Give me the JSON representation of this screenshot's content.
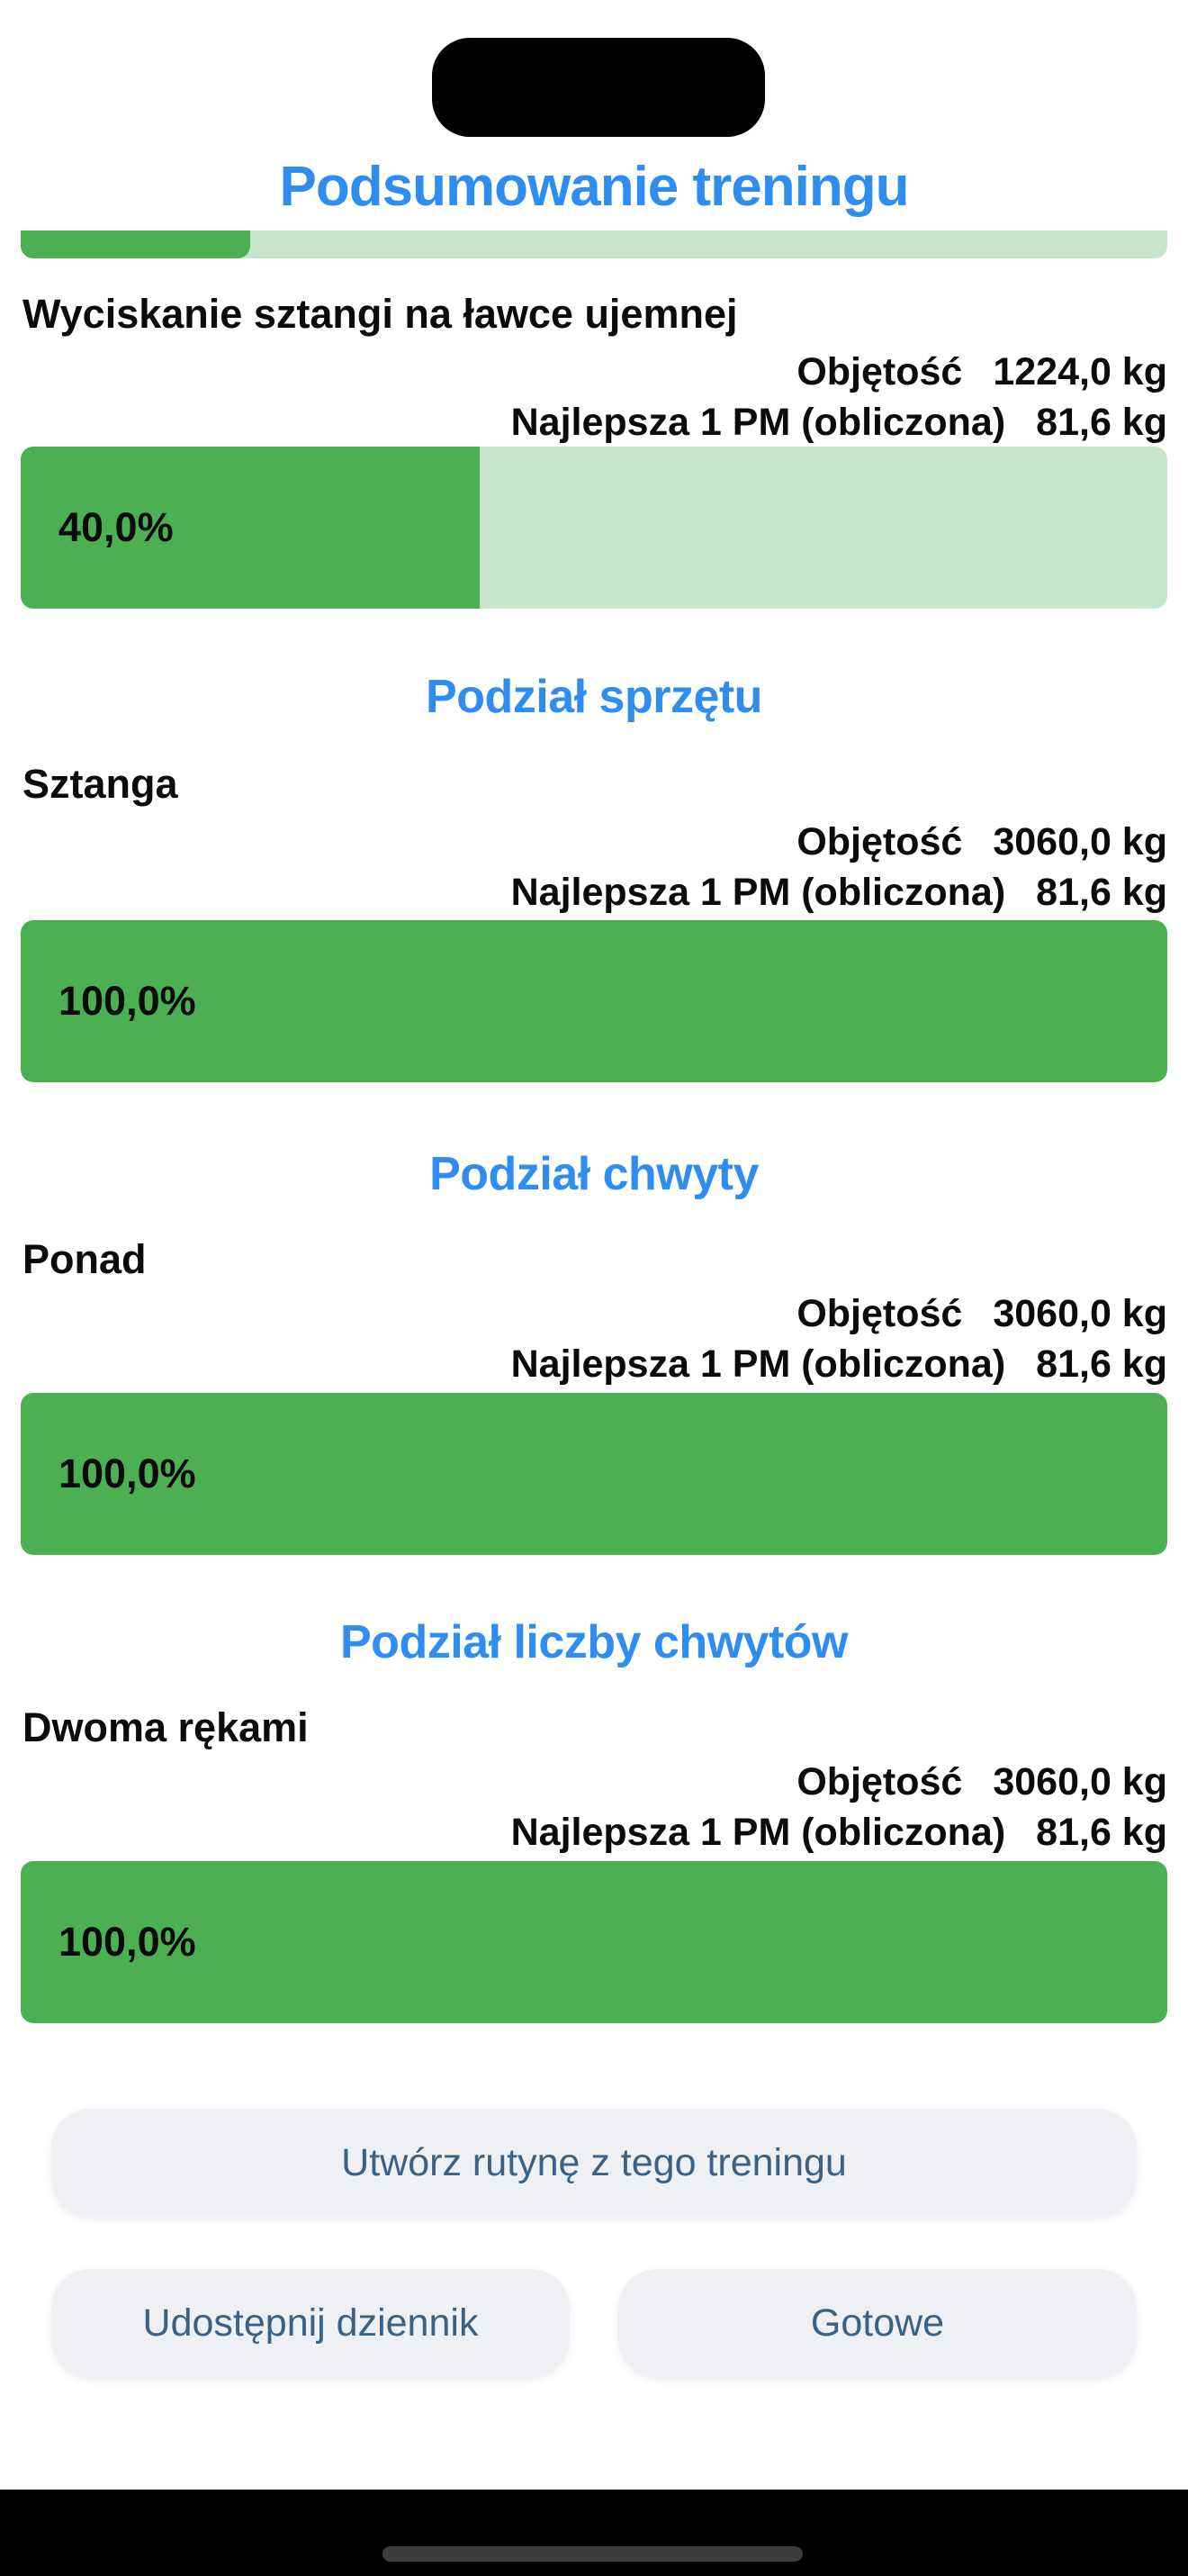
{
  "page": {
    "title": "Podsumowanie treningu"
  },
  "stats_labels": {
    "volume": "Objętość",
    "best_1rm": "Najlepsza 1 PM (obliczona)"
  },
  "top_bar": {
    "percent": 20
  },
  "sections": [
    {
      "heading": "",
      "item": "Wyciskanie sztangi na ławce ujemnej",
      "volume_value": "1224,0 kg",
      "best_1rm_value": "81,6 kg",
      "percent": 40,
      "percent_label": "40,0%"
    },
    {
      "heading": "Podział sprzętu",
      "item": "Sztanga",
      "volume_value": "3060,0 kg",
      "best_1rm_value": "81,6 kg",
      "percent": 100,
      "percent_label": "100,0%"
    },
    {
      "heading": "Podział chwyty",
      "item": "Ponad",
      "volume_value": "3060,0 kg",
      "best_1rm_value": "81,6 kg",
      "percent": 100,
      "percent_label": "100,0%"
    },
    {
      "heading": "Podział liczby chwytów",
      "item": "Dwoma rękami",
      "volume_value": "3060,0 kg",
      "best_1rm_value": "81,6 kg",
      "percent": 100,
      "percent_label": "100,0%"
    }
  ],
  "buttons": {
    "create_routine": "Utwórz rutynę z tego treningu",
    "share_log": "Udostępnij dziennik",
    "done": "Gotowe"
  },
  "colors": {
    "accent_blue": "#2f8df0",
    "bar_green": "#4cb052",
    "bar_green_light": "#c7e5cc",
    "button_bg": "#eef0f4",
    "button_text": "#3a6186",
    "text_black": "#0b0b0b"
  }
}
